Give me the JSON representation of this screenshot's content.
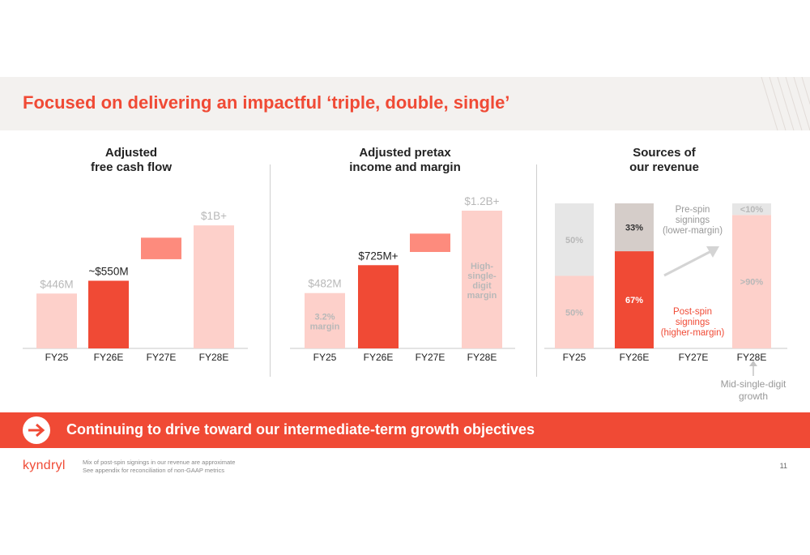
{
  "slide": {
    "title": "Focused on delivering an impactful ‘triple, double, single’",
    "banner": "Continuing to drive toward our intermediate-term growth objectives",
    "logo": "kyndryl",
    "footnotes": [
      "Mix of post-spin signings in our revenue are approximate",
      "See appendix for reconciliation of non-GAAP metrics"
    ],
    "page_number": "11"
  },
  "colors": {
    "accent": "#f04a35",
    "bar_light": "#fdd0ca",
    "bar_mid": "#fd8b7d",
    "bar_dark": "#f04a35",
    "grey_light": "#e6e6e6",
    "grey_mid": "#d5cdc9",
    "label_muted": "#b8b8b8"
  },
  "chart_data": [
    {
      "type": "bar",
      "title": "Adjusted free cash flow",
      "title_lines": [
        "Adjusted",
        "free cash flow"
      ],
      "categories": [
        "FY25",
        "FY26E",
        "FY27E",
        "FY28E"
      ],
      "bars": [
        {
          "category": "FY25",
          "value": 446,
          "label": "$446M",
          "style": "light"
        },
        {
          "category": "FY26E",
          "value": 550,
          "label": "~$550M",
          "style": "dark"
        },
        {
          "category": "FY27E",
          "low": 725,
          "high": 900,
          "label": "",
          "style": "mid"
        },
        {
          "category": "FY28E",
          "value": 1000,
          "label": "$1B+",
          "style": "light"
        }
      ],
      "ylim": [
        0,
        1100
      ]
    },
    {
      "type": "bar",
      "title": "Adjusted pretax income and margin",
      "title_lines": [
        "Adjusted pretax",
        "income and margin"
      ],
      "categories": [
        "FY25",
        "FY26E",
        "FY27E",
        "FY28E"
      ],
      "bars": [
        {
          "category": "FY25",
          "value": 482,
          "label": "$482M",
          "inner_label": [
            "3.2%",
            "margin"
          ],
          "style": "light"
        },
        {
          "category": "FY26E",
          "value": 725,
          "label": "$725M+",
          "style": "dark"
        },
        {
          "category": "FY27E",
          "low": 840,
          "high": 1000,
          "label": "",
          "style": "mid"
        },
        {
          "category": "FY28E",
          "value": 1200,
          "label": "$1.2B+",
          "inner_label": [
            "High-",
            "single-",
            "digit",
            "margin"
          ],
          "style": "light"
        }
      ],
      "ylim": [
        0,
        1320
      ]
    },
    {
      "type": "bar",
      "stacked": true,
      "title": "Sources of our revenue",
      "title_lines": [
        "Sources of",
        "our revenue"
      ],
      "categories": [
        "FY25",
        "FY26E",
        "FY27E",
        "FY28E"
      ],
      "stacks": [
        {
          "category": "FY25",
          "segments": [
            {
              "label": "50%",
              "value": 50,
              "style": "light"
            },
            {
              "label": "50%",
              "value": 50,
              "style": "grey"
            }
          ]
        },
        {
          "category": "FY26E",
          "segments": [
            {
              "label": "67%",
              "value": 67,
              "style": "dark"
            },
            {
              "label": "33%",
              "value": 33,
              "style": "greymid"
            }
          ]
        },
        {
          "category": "FY27E",
          "segments": []
        },
        {
          "category": "FY28E",
          "segments": [
            {
              "label": ">90%",
              "value": 92,
              "style": "light"
            },
            {
              "label": "<10%",
              "value": 8,
              "style": "grey"
            }
          ]
        }
      ],
      "annotations": {
        "pre_spin": [
          "Pre-spin",
          "signings",
          "(lower-margin)"
        ],
        "post_spin": [
          "Post-spin",
          "signings",
          "(higher-margin)"
        ],
        "growth": [
          "Mid-single-digit",
          "growth"
        ]
      }
    }
  ]
}
